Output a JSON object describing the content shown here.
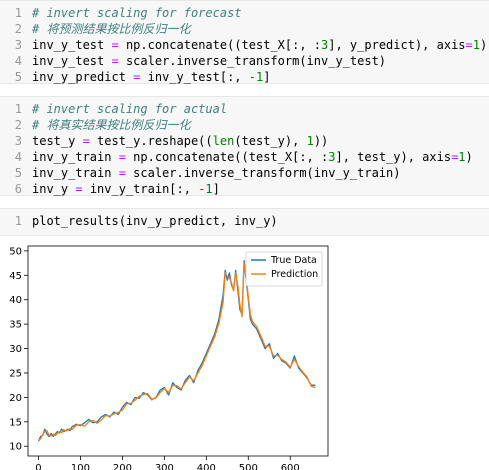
{
  "cells": [
    {
      "lines": [
        {
          "n": "1",
          "code": "# invert scaling for forecast",
          "type": "comment"
        },
        {
          "n": "2",
          "code": "# 将预测结果按比例反归一化",
          "type": "comment"
        },
        {
          "n": "3",
          "code": "inv_y_test = np.concatenate((test_X[:, :3], y_predict), axis=1)",
          "type": "code"
        },
        {
          "n": "4",
          "code": "inv_y_test = scaler.inverse_transform(inv_y_test)",
          "type": "code"
        },
        {
          "n": "5",
          "code": "inv_y_predict = inv_y_test[:, -1]",
          "type": "code"
        }
      ]
    },
    {
      "lines": [
        {
          "n": "1",
          "code": "# invert scaling for actual",
          "type": "comment"
        },
        {
          "n": "2",
          "code": "# 将真实结果按比例反归一化",
          "type": "comment"
        },
        {
          "n": "3",
          "code": "test_y = test_y.reshape((len(test_y), 1))",
          "type": "code"
        },
        {
          "n": "4",
          "code": "inv_y_train = np.concatenate((test_X[:, :3], test_y), axis=1)",
          "type": "code"
        },
        {
          "n": "5",
          "code": "inv_y_train = scaler.inverse_transform(inv_y_train)",
          "type": "code"
        },
        {
          "n": "6",
          "code": "inv_y = inv_y_train[:, -1]",
          "type": "code"
        }
      ]
    },
    {
      "lines": [
        {
          "n": "1",
          "code": "plot_results(inv_y_predict, inv_y)",
          "type": "code"
        }
      ]
    }
  ],
  "chart_data": {
    "type": "line",
    "title": "",
    "xlabel": "",
    "ylabel": "",
    "xlim": [
      -25,
      690
    ],
    "ylim": [
      8,
      51
    ],
    "xticks": [
      0,
      100,
      200,
      300,
      400,
      500,
      600
    ],
    "yticks": [
      10,
      15,
      20,
      25,
      30,
      35,
      40,
      45,
      50
    ],
    "legend_position": "top-right",
    "series": [
      {
        "name": "True Data",
        "color": "#1f77b4",
        "x": [
          0,
          5,
          10,
          15,
          20,
          25,
          30,
          35,
          40,
          45,
          50,
          55,
          60,
          65,
          70,
          75,
          80,
          90,
          100,
          110,
          120,
          130,
          140,
          150,
          160,
          170,
          180,
          190,
          200,
          210,
          220,
          230,
          240,
          250,
          260,
          270,
          280,
          290,
          300,
          310,
          320,
          330,
          340,
          350,
          360,
          370,
          380,
          390,
          400,
          410,
          420,
          430,
          440,
          445,
          450,
          455,
          460,
          465,
          470,
          475,
          480,
          485,
          490,
          495,
          500,
          505,
          510,
          520,
          530,
          540,
          550,
          560,
          570,
          580,
          590,
          600,
          610,
          620,
          630,
          640,
          650,
          660
        ],
        "y": [
          11,
          12,
          12.2,
          13.5,
          12.5,
          12,
          12.6,
          12,
          12.5,
          13,
          12.7,
          13.5,
          13,
          13.2,
          13.5,
          13.2,
          14,
          14.5,
          14.2,
          14.8,
          15.5,
          14.8,
          15,
          16,
          16.5,
          16,
          17,
          16.5,
          18,
          19,
          18.5,
          20,
          19.8,
          21,
          20.5,
          19.5,
          20,
          21.5,
          22,
          20.5,
          23,
          22,
          21.5,
          23.5,
          24.5,
          23,
          25.5,
          27,
          29,
          31,
          33,
          36,
          41,
          46,
          44,
          45.5,
          43,
          42,
          46,
          42,
          38,
          37,
          48,
          44,
          40,
          36,
          35,
          34,
          32,
          30,
          31,
          28,
          29,
          27.5,
          27,
          26,
          28.5,
          26,
          25,
          24,
          22.5,
          22.5
        ]
      },
      {
        "name": "Prediction",
        "color": "#ff7f0e",
        "x": [
          0,
          5,
          10,
          15,
          20,
          25,
          30,
          35,
          40,
          45,
          50,
          55,
          60,
          65,
          70,
          75,
          80,
          90,
          100,
          110,
          120,
          130,
          140,
          150,
          160,
          170,
          180,
          190,
          200,
          210,
          220,
          230,
          240,
          250,
          260,
          270,
          280,
          290,
          300,
          310,
          320,
          330,
          340,
          350,
          360,
          370,
          380,
          390,
          400,
          410,
          420,
          430,
          440,
          445,
          450,
          455,
          460,
          465,
          470,
          475,
          480,
          485,
          490,
          495,
          500,
          505,
          510,
          520,
          530,
          540,
          550,
          560,
          570,
          580,
          590,
          600,
          610,
          620,
          630,
          640,
          650,
          660
        ],
        "y": [
          11.3,
          11.5,
          12.4,
          13,
          13.2,
          12.3,
          12.1,
          12.5,
          12.2,
          12.6,
          13,
          12.8,
          13.4,
          13.1,
          13.3,
          13.6,
          13.4,
          14.3,
          14.4,
          14.1,
          15,
          15.3,
          14.7,
          15.4,
          16.3,
          16.2,
          16.6,
          16.9,
          17.4,
          18.7,
          18.8,
          19.4,
          20.2,
          20.6,
          20.8,
          19.6,
          19.9,
          21,
          21.8,
          21,
          22.5,
          22.4,
          21.7,
          23,
          24.2,
          23.4,
          25,
          26.5,
          28.5,
          30.5,
          32.4,
          35.2,
          39.5,
          45.5,
          44.8,
          44.5,
          43.5,
          41.8,
          45.5,
          43,
          39,
          36.5,
          47.5,
          45,
          40.5,
          37,
          35.5,
          34.5,
          32.5,
          30.5,
          30.5,
          28.5,
          28.6,
          27.8,
          27.2,
          26.2,
          27.8,
          26.3,
          25.2,
          24.2,
          22.3,
          22
        ]
      }
    ]
  }
}
